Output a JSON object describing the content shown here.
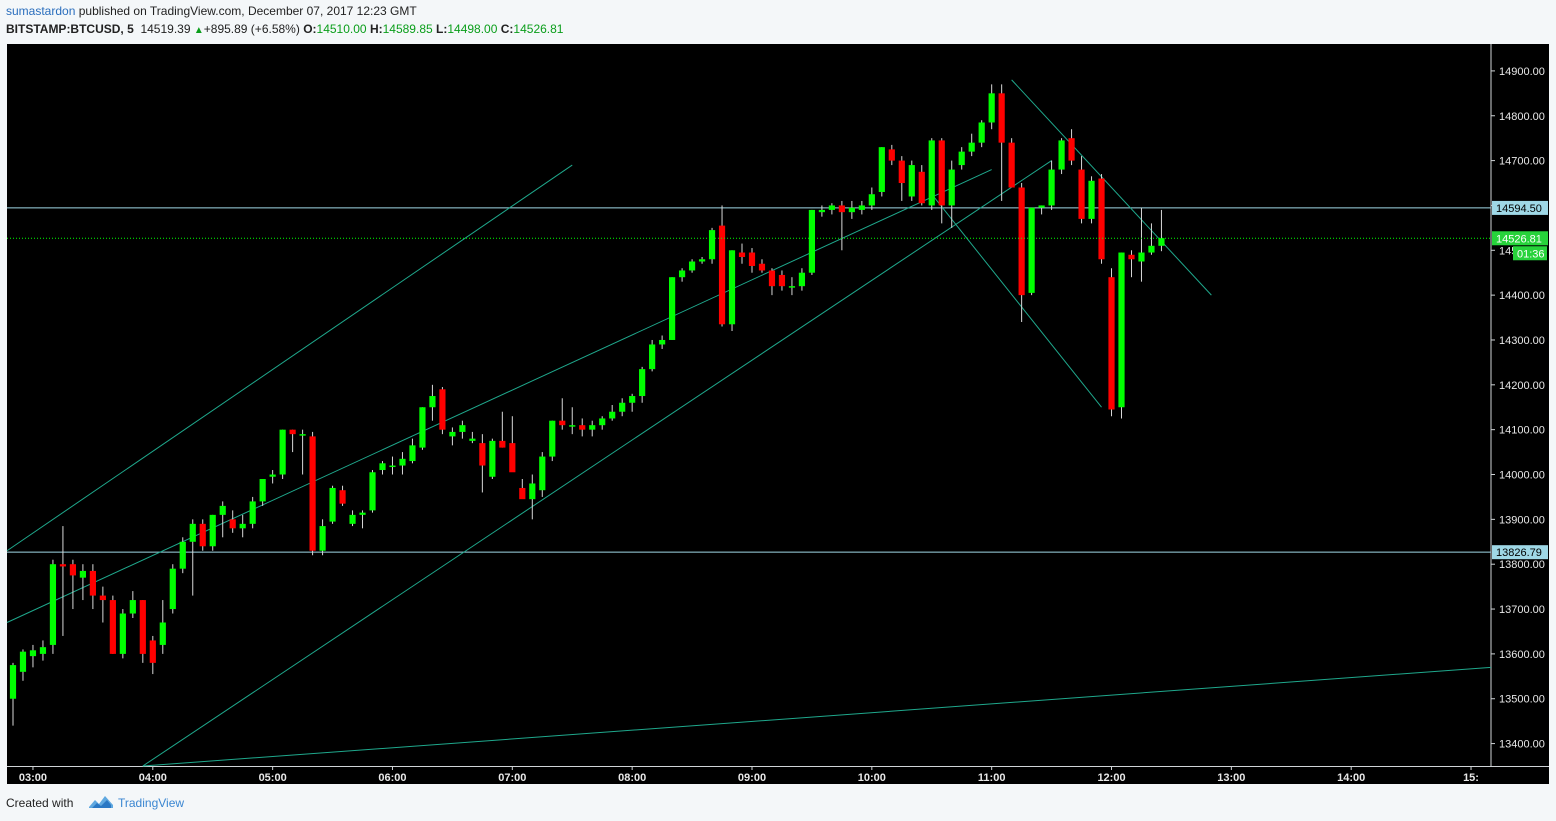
{
  "header": {
    "author": "sumastardon",
    "published_text": "published on TradingView.com, December 07, 2017 12:23 GMT",
    "symbol": "BITSTAMP:BTCUSD, 5",
    "last": "14519.39",
    "change": "+895.89 (+6.58%)",
    "o_label": "O:",
    "o_value": "14510.00",
    "h_label": "H:",
    "h_value": "14589.85",
    "l_label": "L:",
    "l_value": "14498.00",
    "c_label": "C:",
    "c_value": "14526.81"
  },
  "footer": {
    "created_with": "Created with",
    "brand": "TradingView"
  },
  "colors": {
    "background": "#000000",
    "up": "#00ff00",
    "down": "#ff0000",
    "trendline": "#1fa88c",
    "hline": "#9fd8e6"
  },
  "chart_data": {
    "type": "candlestick",
    "interval": "5",
    "ylim": [
      13350,
      14960
    ],
    "y_ticks": [
      13400,
      13500,
      13600,
      13700,
      13800,
      13900,
      14000,
      14100,
      14200,
      14300,
      14400,
      14500,
      14600,
      14700,
      14800,
      14900
    ],
    "y_tick_labels": [
      "13400.00",
      "13500.00",
      "13600.00",
      "13700.00",
      "13800.00",
      "13900.00",
      "14000.00",
      "14100.00",
      "14200.00",
      "14300.00",
      "14400.00",
      "14500.00",
      "14600.00",
      "14700.00",
      "14800.00",
      "14900.00"
    ],
    "xlim": [
      "02:47",
      "15:10"
    ],
    "x_ticks": [
      "03:00",
      "04:00",
      "05:00",
      "06:00",
      "07:00",
      "08:00",
      "09:00",
      "10:00",
      "11:00",
      "12:00",
      "13:00",
      "14:00",
      "15:00"
    ],
    "x_tick_labels": [
      "03:00",
      "04:00",
      "05:00",
      "06:00",
      "07:00",
      "08:00",
      "09:00",
      "10:00",
      "11:00",
      "12:00",
      "13:00",
      "14:00",
      "15:"
    ],
    "horizontal_levels": [
      {
        "price": 14594.5,
        "label": "14594.50"
      },
      {
        "price": 13826.79,
        "label": "13826.79"
      }
    ],
    "last_price": {
      "price": 14526.81,
      "label": "14526.81",
      "countdown": "01:36"
    },
    "trendlines": [
      {
        "from": [
          "02:47",
          13830
        ],
        "to": [
          "07:30",
          14690
        ]
      },
      {
        "from": [
          "02:47",
          13670
        ],
        "to": [
          "11:00",
          14680
        ]
      },
      {
        "from": [
          "03:55",
          13350
        ],
        "to": [
          "11:30",
          14700
        ]
      },
      {
        "from": [
          "03:55",
          13350
        ],
        "to": [
          "15:10",
          13570
        ]
      },
      {
        "from": [
          "11:10",
          14880
        ],
        "to": [
          "12:50",
          14400
        ]
      },
      {
        "from": [
          "10:30",
          14625
        ],
        "to": [
          "11:55",
          14150
        ]
      }
    ],
    "candles": [
      {
        "t": "02:50",
        "o": 13500,
        "h": 13580,
        "l": 13440,
        "c": 13575
      },
      {
        "t": "02:55",
        "o": 13560,
        "h": 13610,
        "l": 13540,
        "c": 13605
      },
      {
        "t": "03:00",
        "o": 13595,
        "h": 13620,
        "l": 13570,
        "c": 13608
      },
      {
        "t": "03:05",
        "o": 13600,
        "h": 13630,
        "l": 13585,
        "c": 13615
      },
      {
        "t": "03:10",
        "o": 13620,
        "h": 13810,
        "l": 13600,
        "c": 13800
      },
      {
        "t": "03:15",
        "o": 13800,
        "h": 13885,
        "l": 13640,
        "c": 13795
      },
      {
        "t": "03:20",
        "o": 13800,
        "h": 13810,
        "l": 13700,
        "c": 13775
      },
      {
        "t": "03:25",
        "o": 13770,
        "h": 13800,
        "l": 13720,
        "c": 13785
      },
      {
        "t": "03:30",
        "o": 13785,
        "h": 13800,
        "l": 13700,
        "c": 13730
      },
      {
        "t": "03:35",
        "o": 13730,
        "h": 13750,
        "l": 13670,
        "c": 13720
      },
      {
        "t": "03:40",
        "o": 13720,
        "h": 13730,
        "l": 13600,
        "c": 13600
      },
      {
        "t": "03:45",
        "o": 13600,
        "h": 13700,
        "l": 13590,
        "c": 13690
      },
      {
        "t": "03:50",
        "o": 13690,
        "h": 13740,
        "l": 13680,
        "c": 13720
      },
      {
        "t": "03:55",
        "o": 13720,
        "h": 13720,
        "l": 13580,
        "c": 13600
      },
      {
        "t": "04:00",
        "o": 13630,
        "h": 13640,
        "l": 13555,
        "c": 13580
      },
      {
        "t": "04:05",
        "o": 13620,
        "h": 13720,
        "l": 13600,
        "c": 13670
      },
      {
        "t": "04:10",
        "o": 13700,
        "h": 13800,
        "l": 13690,
        "c": 13790
      },
      {
        "t": "04:15",
        "o": 13790,
        "h": 13860,
        "l": 13780,
        "c": 13850
      },
      {
        "t": "04:20",
        "o": 13850,
        "h": 13900,
        "l": 13730,
        "c": 13890
      },
      {
        "t": "04:25",
        "o": 13890,
        "h": 13900,
        "l": 13830,
        "c": 13840
      },
      {
        "t": "04:30",
        "o": 13840,
        "h": 13910,
        "l": 13830,
        "c": 13910
      },
      {
        "t": "04:35",
        "o": 13910,
        "h": 13940,
        "l": 13860,
        "c": 13930
      },
      {
        "t": "04:40",
        "o": 13900,
        "h": 13920,
        "l": 13870,
        "c": 13880
      },
      {
        "t": "04:45",
        "o": 13880,
        "h": 13910,
        "l": 13860,
        "c": 13890
      },
      {
        "t": "04:50",
        "o": 13890,
        "h": 13950,
        "l": 13880,
        "c": 13940
      },
      {
        "t": "04:55",
        "o": 13940,
        "h": 13990,
        "l": 13930,
        "c": 13990
      },
      {
        "t": "05:00",
        "o": 13995,
        "h": 14010,
        "l": 13980,
        "c": 14000
      },
      {
        "t": "05:05",
        "o": 14000,
        "h": 14100,
        "l": 13990,
        "c": 14100
      },
      {
        "t": "05:10",
        "o": 14100,
        "h": 14100,
        "l": 14050,
        "c": 14090
      },
      {
        "t": "05:15",
        "o": 14090,
        "h": 14100,
        "l": 14000,
        "c": 14090
      },
      {
        "t": "05:20",
        "o": 14085,
        "h": 14095,
        "l": 13820,
        "c": 13830
      },
      {
        "t": "05:25",
        "o": 13830,
        "h": 13900,
        "l": 13820,
        "c": 13885
      },
      {
        "t": "05:30",
        "o": 13895,
        "h": 13975,
        "l": 13890,
        "c": 13970
      },
      {
        "t": "05:35",
        "o": 13965,
        "h": 13975,
        "l": 13930,
        "c": 13935
      },
      {
        "t": "05:40",
        "o": 13890,
        "h": 13920,
        "l": 13885,
        "c": 13910
      },
      {
        "t": "05:45",
        "o": 13910,
        "h": 13920,
        "l": 13880,
        "c": 13915
      },
      {
        "t": "05:50",
        "o": 13920,
        "h": 14010,
        "l": 13915,
        "c": 14005
      },
      {
        "t": "05:55",
        "o": 14010,
        "h": 14030,
        "l": 14000,
        "c": 14025
      },
      {
        "t": "06:00",
        "o": 14020,
        "h": 14040,
        "l": 14000,
        "c": 14020
      },
      {
        "t": "06:05",
        "o": 14020,
        "h": 14050,
        "l": 14000,
        "c": 14035
      },
      {
        "t": "06:10",
        "o": 14030,
        "h": 14080,
        "l": 14025,
        "c": 14065
      },
      {
        "t": "06:15",
        "o": 14060,
        "h": 14150,
        "l": 14055,
        "c": 14150
      },
      {
        "t": "06:20",
        "o": 14150,
        "h": 14200,
        "l": 14120,
        "c": 14175
      },
      {
        "t": "06:25",
        "o": 14190,
        "h": 14195,
        "l": 14090,
        "c": 14100
      },
      {
        "t": "06:30",
        "o": 14085,
        "h": 14105,
        "l": 14065,
        "c": 14095
      },
      {
        "t": "06:35",
        "o": 14095,
        "h": 14120,
        "l": 14080,
        "c": 14110
      },
      {
        "t": "06:40",
        "o": 14075,
        "h": 14095,
        "l": 14070,
        "c": 14080
      },
      {
        "t": "06:45",
        "o": 14070,
        "h": 14090,
        "l": 13960,
        "c": 14020
      },
      {
        "t": "06:50",
        "o": 13995,
        "h": 14080,
        "l": 13990,
        "c": 14075
      },
      {
        "t": "06:55",
        "o": 14075,
        "h": 14140,
        "l": 14060,
        "c": 14060
      },
      {
        "t": "07:00",
        "o": 14070,
        "h": 14130,
        "l": 14010,
        "c": 14005
      },
      {
        "t": "07:05",
        "o": 13970,
        "h": 13990,
        "l": 13950,
        "c": 13945
      },
      {
        "t": "07:10",
        "o": 13945,
        "h": 14000,
        "l": 13900,
        "c": 13980
      },
      {
        "t": "07:15",
        "o": 13965,
        "h": 14050,
        "l": 13950,
        "c": 14040
      },
      {
        "t": "07:20",
        "o": 14040,
        "h": 14120,
        "l": 14030,
        "c": 14120
      },
      {
        "t": "07:25",
        "o": 14120,
        "h": 14170,
        "l": 14100,
        "c": 14110
      },
      {
        "t": "07:30",
        "o": 14110,
        "h": 14150,
        "l": 14090,
        "c": 14110
      },
      {
        "t": "07:35",
        "o": 14110,
        "h": 14125,
        "l": 14085,
        "c": 14100
      },
      {
        "t": "07:40",
        "o": 14100,
        "h": 14120,
        "l": 14085,
        "c": 14110
      },
      {
        "t": "07:45",
        "o": 14110,
        "h": 14130,
        "l": 14100,
        "c": 14125
      },
      {
        "t": "07:50",
        "o": 14125,
        "h": 14155,
        "l": 14120,
        "c": 14140
      },
      {
        "t": "07:55",
        "o": 14140,
        "h": 14170,
        "l": 14130,
        "c": 14160
      },
      {
        "t": "08:00",
        "o": 14160,
        "h": 14180,
        "l": 14140,
        "c": 14175
      },
      {
        "t": "08:05",
        "o": 14175,
        "h": 14240,
        "l": 14160,
        "c": 14235
      },
      {
        "t": "08:10",
        "o": 14235,
        "h": 14300,
        "l": 14230,
        "c": 14290
      },
      {
        "t": "08:15",
        "o": 14290,
        "h": 14310,
        "l": 14280,
        "c": 14300
      },
      {
        "t": "08:20",
        "o": 14300,
        "h": 14440,
        "l": 14300,
        "c": 14440
      },
      {
        "t": "08:25",
        "o": 14440,
        "h": 14460,
        "l": 14430,
        "c": 14455
      },
      {
        "t": "08:30",
        "o": 14455,
        "h": 14480,
        "l": 14450,
        "c": 14475
      },
      {
        "t": "08:35",
        "o": 14475,
        "h": 14485,
        "l": 14470,
        "c": 14480
      },
      {
        "t": "08:40",
        "o": 14480,
        "h": 14550,
        "l": 14470,
        "c": 14545
      },
      {
        "t": "08:45",
        "o": 14555,
        "h": 14600,
        "l": 14330,
        "c": 14335
      },
      {
        "t": "08:50",
        "o": 14335,
        "h": 14500,
        "l": 14320,
        "c": 14500
      },
      {
        "t": "08:55",
        "o": 14495,
        "h": 14515,
        "l": 14470,
        "c": 14485
      },
      {
        "t": "09:00",
        "o": 14495,
        "h": 14505,
        "l": 14450,
        "c": 14465
      },
      {
        "t": "09:05",
        "o": 14470,
        "h": 14480,
        "l": 14450,
        "c": 14455
      },
      {
        "t": "09:10",
        "o": 14455,
        "h": 14460,
        "l": 14400,
        "c": 14420
      },
      {
        "t": "09:15",
        "o": 14445,
        "h": 14455,
        "l": 14410,
        "c": 14420
      },
      {
        "t": "09:20",
        "o": 14420,
        "h": 14440,
        "l": 14400,
        "c": 14420
      },
      {
        "t": "09:25",
        "o": 14420,
        "h": 14460,
        "l": 14410,
        "c": 14450
      },
      {
        "t": "09:30",
        "o": 14450,
        "h": 14590,
        "l": 14445,
        "c": 14590
      },
      {
        "t": "09:35",
        "o": 14585,
        "h": 14600,
        "l": 14575,
        "c": 14590
      },
      {
        "t": "09:40",
        "o": 14590,
        "h": 14605,
        "l": 14580,
        "c": 14600
      },
      {
        "t": "09:45",
        "o": 14600,
        "h": 14610,
        "l": 14500,
        "c": 14585
      },
      {
        "t": "09:50",
        "o": 14585,
        "h": 14610,
        "l": 14570,
        "c": 14595
      },
      {
        "t": "09:55",
        "o": 14590,
        "h": 14610,
        "l": 14580,
        "c": 14600
      },
      {
        "t": "10:00",
        "o": 14600,
        "h": 14640,
        "l": 14590,
        "c": 14625
      },
      {
        "t": "10:05",
        "o": 14630,
        "h": 14730,
        "l": 14620,
        "c": 14730
      },
      {
        "t": "10:10",
        "o": 14725,
        "h": 14735,
        "l": 14690,
        "c": 14700
      },
      {
        "t": "10:15",
        "o": 14700,
        "h": 14710,
        "l": 14610,
        "c": 14650
      },
      {
        "t": "10:20",
        "o": 14620,
        "h": 14700,
        "l": 14610,
        "c": 14690
      },
      {
        "t": "10:25",
        "o": 14675,
        "h": 14690,
        "l": 14600,
        "c": 14605
      },
      {
        "t": "10:30",
        "o": 14600,
        "h": 14750,
        "l": 14590,
        "c": 14745
      },
      {
        "t": "10:35",
        "o": 14745,
        "h": 14750,
        "l": 14560,
        "c": 14600
      },
      {
        "t": "10:40",
        "o": 14600,
        "h": 14700,
        "l": 14550,
        "c": 14680
      },
      {
        "t": "10:45",
        "o": 14690,
        "h": 14730,
        "l": 14680,
        "c": 14720
      },
      {
        "t": "10:50",
        "o": 14720,
        "h": 14760,
        "l": 14710,
        "c": 14740
      },
      {
        "t": "10:55",
        "o": 14740,
        "h": 14790,
        "l": 14730,
        "c": 14785
      },
      {
        "t": "11:00",
        "o": 14785,
        "h": 14870,
        "l": 14770,
        "c": 14850
      },
      {
        "t": "11:05",
        "o": 14850,
        "h": 14870,
        "l": 14610,
        "c": 14740
      },
      {
        "t": "11:10",
        "o": 14740,
        "h": 14750,
        "l": 14640,
        "c": 14640
      },
      {
        "t": "11:15",
        "o": 14640,
        "h": 14650,
        "l": 14340,
        "c": 14400
      },
      {
        "t": "11:20",
        "o": 14405,
        "h": 14595,
        "l": 14400,
        "c": 14595
      },
      {
        "t": "11:25",
        "o": 14595,
        "h": 14600,
        "l": 14580,
        "c": 14600
      },
      {
        "t": "11:30",
        "o": 14600,
        "h": 14700,
        "l": 14590,
        "c": 14680
      },
      {
        "t": "11:35",
        "o": 14680,
        "h": 14750,
        "l": 14670,
        "c": 14745
      },
      {
        "t": "11:40",
        "o": 14750,
        "h": 14770,
        "l": 14690,
        "c": 14700
      },
      {
        "t": "11:45",
        "o": 14680,
        "h": 14710,
        "l": 14560,
        "c": 14570
      },
      {
        "t": "11:50",
        "o": 14570,
        "h": 14665,
        "l": 14560,
        "c": 14655
      },
      {
        "t": "11:55",
        "o": 14660,
        "h": 14670,
        "l": 14470,
        "c": 14480
      },
      {
        "t": "12:00",
        "o": 14440,
        "h": 14460,
        "l": 14130,
        "c": 14145
      },
      {
        "t": "12:05",
        "o": 14150,
        "h": 14495,
        "l": 14125,
        "c": 14495
      },
      {
        "t": "12:10",
        "o": 14490,
        "h": 14500,
        "l": 14440,
        "c": 14480
      },
      {
        "t": "12:15",
        "o": 14475,
        "h": 14595,
        "l": 14430,
        "c": 14495
      },
      {
        "t": "12:20",
        "o": 14495,
        "h": 14560,
        "l": 14490,
        "c": 14510
      },
      {
        "t": "12:25",
        "o": 14510,
        "h": 14590,
        "l": 14498,
        "c": 14527
      }
    ]
  }
}
